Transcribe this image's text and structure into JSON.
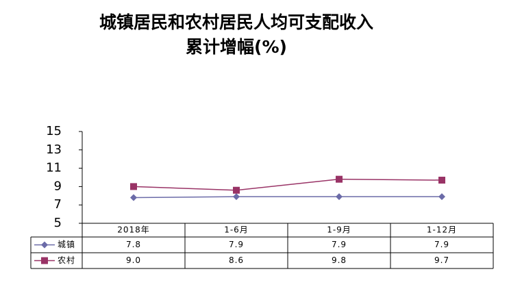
{
  "chart_data": {
    "type": "line",
    "title": "城镇居民和农村居民人均可支配收入",
    "subtitle": "累计增幅(%)",
    "categories": [
      "2018年",
      "1-6月",
      "1-9月",
      "1-12月"
    ],
    "series": [
      {
        "name": "城镇",
        "color": "#6b6ba8",
        "marker": "diamond",
        "values": [
          7.8,
          7.9,
          7.9,
          7.9
        ],
        "value_labels": [
          "7.8",
          "7.9",
          "7.9",
          "7.9"
        ]
      },
      {
        "name": "农村",
        "color": "#993366",
        "marker": "square",
        "values": [
          9.0,
          8.6,
          9.8,
          9.7
        ],
        "value_labels": [
          "9.0",
          "8.6",
          "9.8",
          "9.7"
        ]
      }
    ],
    "ylim": [
      5,
      15
    ],
    "yticks": [
      5,
      7,
      9,
      11,
      13,
      15
    ],
    "grid": false
  }
}
